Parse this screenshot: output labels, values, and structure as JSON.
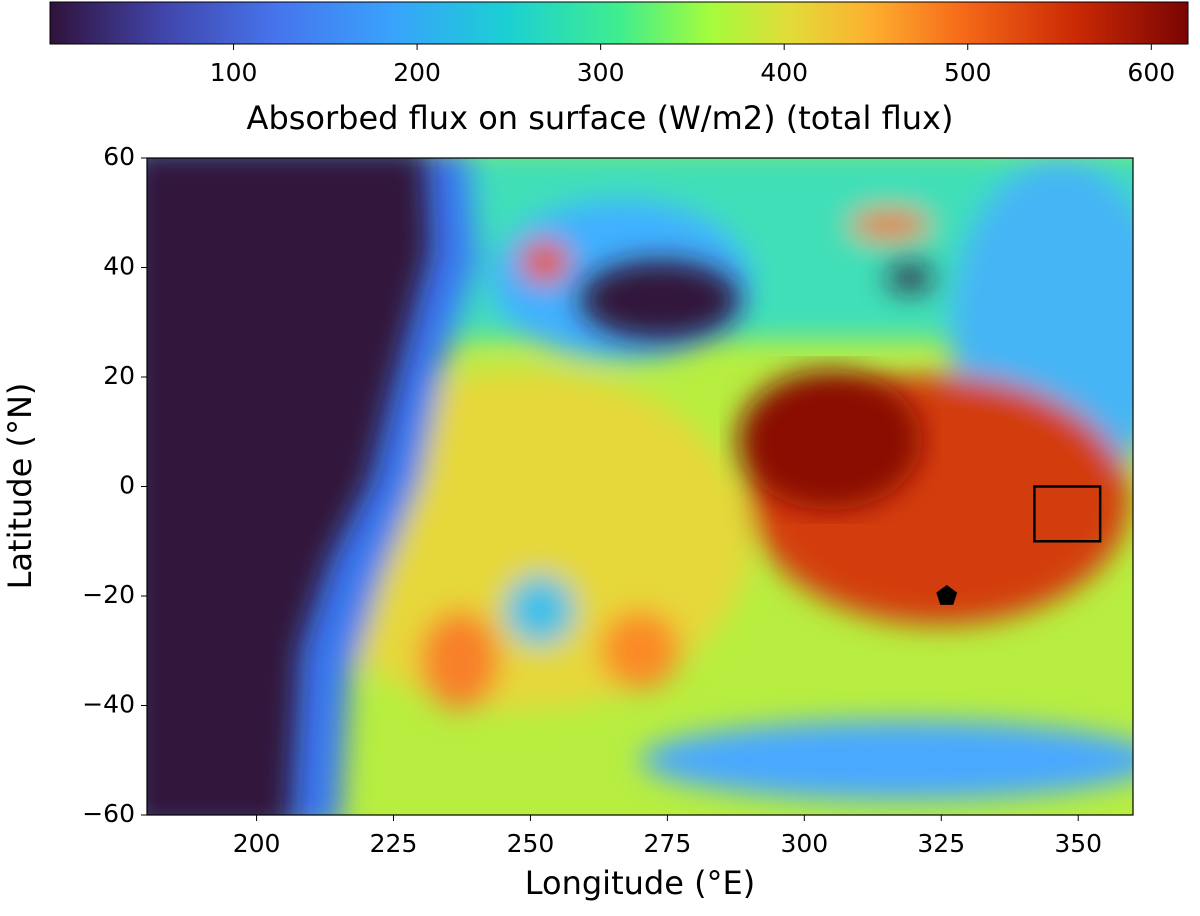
{
  "chart_data": {
    "type": "heatmap",
    "xlabel": "Longitude (°E)",
    "ylabel": "Latitude (°N)",
    "xlim": [
      180,
      360
    ],
    "xticks": [
      200,
      225,
      250,
      275,
      300,
      325,
      350
    ],
    "ylim": [
      -60,
      60
    ],
    "yticks": [
      {
        "value": -60,
        "label": "−60"
      },
      {
        "value": -40,
        "label": "−40"
      },
      {
        "value": -20,
        "label": "−20"
      },
      0,
      20,
      40,
      60
    ],
    "colorbar": {
      "label": "Absorbed flux on surface (W/m2) (total flux)",
      "lim": [
        0,
        620
      ],
      "ticks": [
        100,
        200,
        300,
        400,
        500,
        600
      ],
      "colormap": "turbo",
      "location": "top"
    },
    "annotations": [
      {
        "shape": "rectangle",
        "x": [
          342,
          354
        ],
        "y": [
          -10,
          0
        ],
        "color": "#000000"
      },
      {
        "shape": "pentagon",
        "x": 326,
        "y": -20,
        "color": "#000000"
      }
    ]
  }
}
